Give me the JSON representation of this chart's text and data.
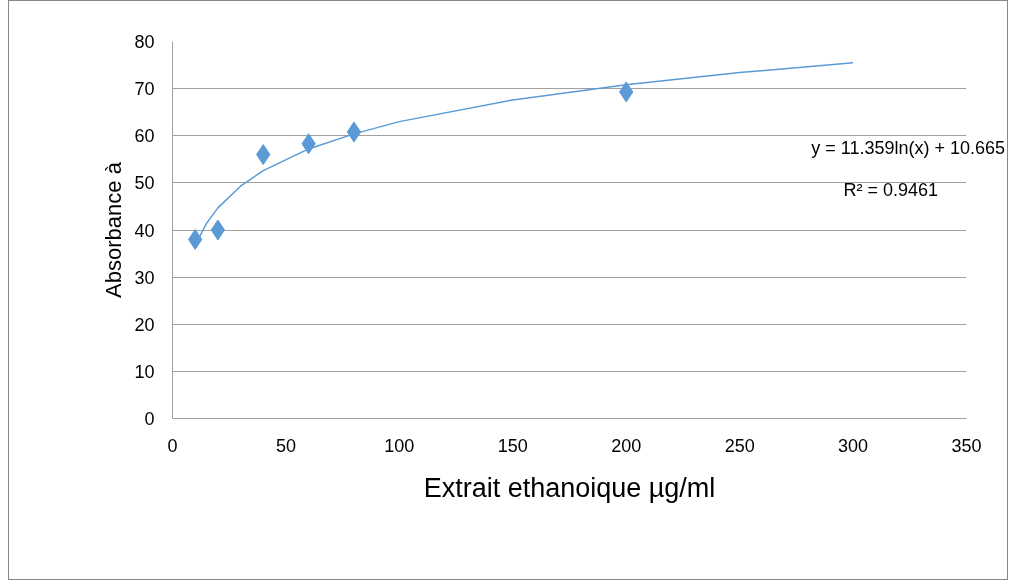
{
  "chart_data": {
    "type": "scatter",
    "xlabel": "Extrait ethanoique µg/ml",
    "ylabel": "Absorbance à",
    "xlim": [
      0,
      350
    ],
    "xticks": [
      0,
      50,
      100,
      150,
      200,
      250,
      300,
      350
    ],
    "ylim": [
      0,
      80
    ],
    "yticks": [
      0,
      10,
      20,
      30,
      40,
      50,
      60,
      70,
      80
    ],
    "grid": "y",
    "series": [
      {
        "type": "scatter",
        "marker": "diamond",
        "color": "#5b9bd5",
        "x": [
          10,
          20,
          40,
          60,
          80,
          200
        ],
        "values": [
          38,
          40,
          56,
          58.3,
          60.8,
          69.3
        ]
      },
      {
        "type": "line",
        "line_style": "solid",
        "color": "#5b9bd5",
        "x": [
          10,
          15,
          20,
          30,
          40,
          60,
          80,
          100,
          150,
          200,
          250,
          300
        ],
        "values": [
          36.8,
          41.4,
          44.7,
          49.3,
          52.6,
          57.2,
          60.4,
          63.0,
          67.6,
          70.8,
          73.4,
          75.5
        ]
      }
    ],
    "annotations": [
      "y = 11.359ln(x) + 10.665",
      "R² = 0.9461"
    ]
  }
}
